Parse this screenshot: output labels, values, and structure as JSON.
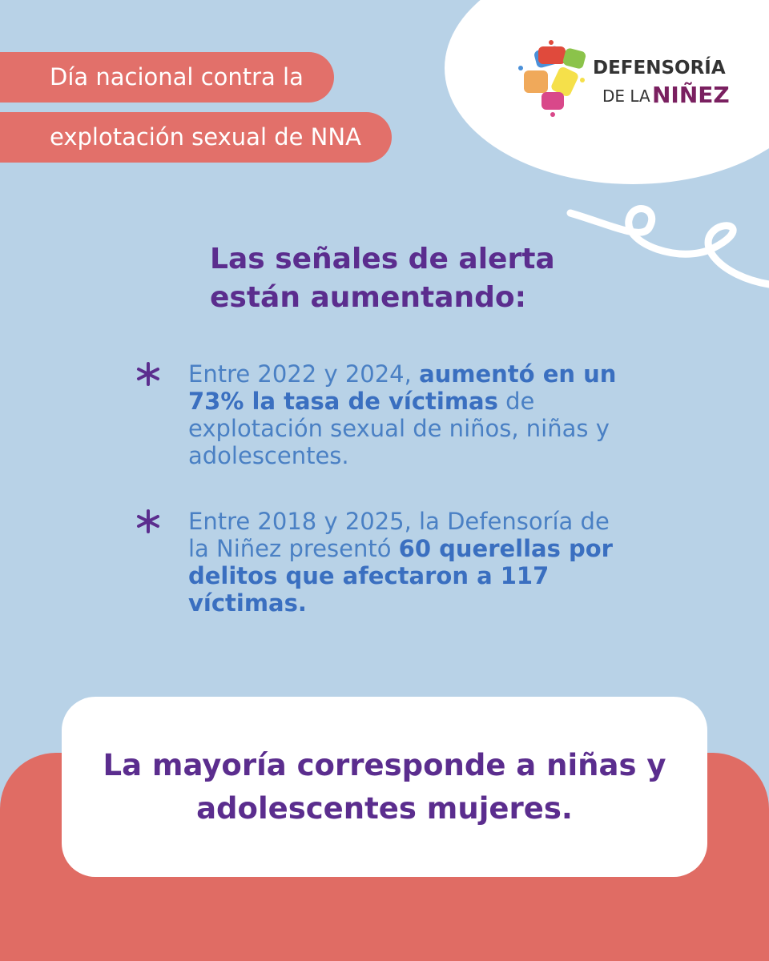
{
  "header": {
    "tags": [
      "Día nacional contra la",
      "explotación sexual de NNA"
    ]
  },
  "logo": {
    "line1": "DEFENSORÍA",
    "line2_prefix": "DE LA",
    "line2_name": "NIÑEZ"
  },
  "heading": {
    "lines": [
      "Las señales de alerta",
      "están aumentando:"
    ]
  },
  "bullets": [
    {
      "segments": [
        {
          "text": "Entre 2022 y 2024, ",
          "bold": false
        },
        {
          "text": "aumentó en un 73% la tasa de víctimas",
          "bold": true
        },
        {
          "text": " de explotación sexual de niños, niñas y adolescentes.",
          "bold": false
        }
      ]
    },
    {
      "segments": [
        {
          "text": "Entre 2018 y 2025, la Defensoría de la Niñez presentó ",
          "bold": false
        },
        {
          "text": "60 querellas por delitos que afectaron a 117 víctimas.",
          "bold": true
        }
      ]
    }
  ],
  "callout": {
    "text": "La mayoría corresponde a niñas y adolescentes mujeres."
  }
}
